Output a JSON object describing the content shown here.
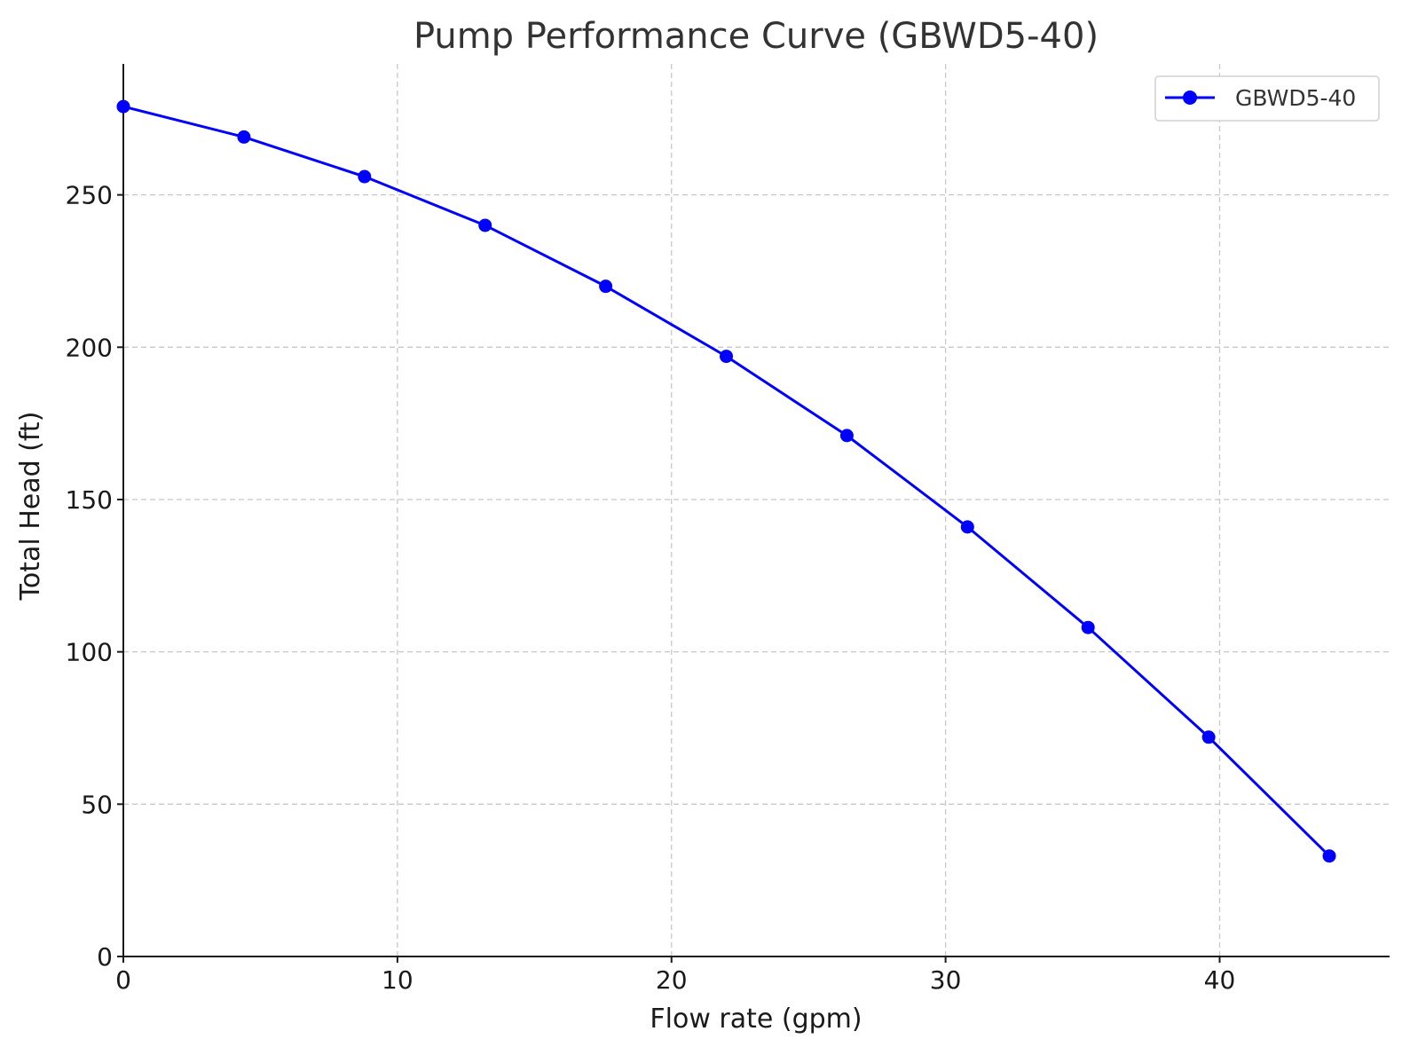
{
  "chart_data": {
    "type": "line",
    "title": "Pump Performance Curve (GBWD5-40)",
    "xlabel": "Flow rate (gpm)",
    "ylabel": "Total Head (ft)",
    "xlim": [
      0,
      46.2
    ],
    "ylim": [
      0,
      293
    ],
    "x_ticks": [
      0,
      10,
      20,
      30,
      40
    ],
    "y_ticks": [
      0,
      50,
      100,
      150,
      200,
      250
    ],
    "grid": true,
    "legend": "top-right",
    "series": [
      {
        "name": "GBWD5-40",
        "color": "#0000ff",
        "marker": "circle",
        "x": [
          0,
          4.4,
          8.8,
          13.2,
          17.6,
          22.0,
          26.4,
          30.8,
          35.2,
          39.6,
          44.0
        ],
        "y": [
          279,
          269,
          256,
          240,
          220,
          197,
          171,
          141,
          108,
          72,
          33
        ]
      }
    ]
  }
}
